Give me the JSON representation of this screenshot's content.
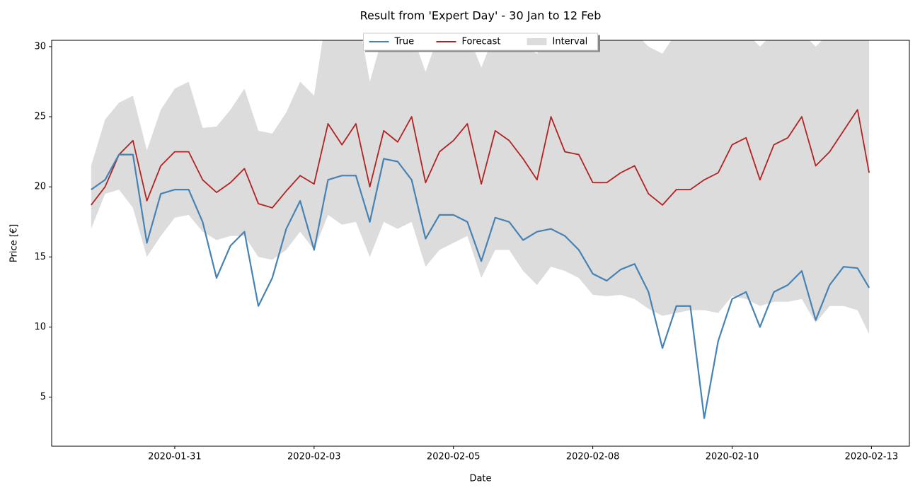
{
  "chart_data": {
    "type": "line",
    "title": "Result from 'Expert Day' - 30 Jan to 12 Feb",
    "x_label": "Date",
    "y_label": "Price [€]",
    "x": [
      "2020-01-30T00:00",
      "2020-01-30T06:00",
      "2020-01-30T12:00",
      "2020-01-30T18:00",
      "2020-01-31T00:00",
      "2020-01-31T06:00",
      "2020-01-31T12:00",
      "2020-01-31T18:00",
      "2020-02-01T00:00",
      "2020-02-01T06:00",
      "2020-02-01T12:00",
      "2020-02-01T18:00",
      "2020-02-02T00:00",
      "2020-02-02T06:00",
      "2020-02-02T12:00",
      "2020-02-02T18:00",
      "2020-02-03T00:00",
      "2020-02-03T06:00",
      "2020-02-03T12:00",
      "2020-02-03T18:00",
      "2020-02-04T00:00",
      "2020-02-04T06:00",
      "2020-02-04T12:00",
      "2020-02-04T18:00",
      "2020-02-05T00:00",
      "2020-02-05T06:00",
      "2020-02-05T12:00",
      "2020-02-05T18:00",
      "2020-02-06T00:00",
      "2020-02-06T06:00",
      "2020-02-06T12:00",
      "2020-02-06T18:00",
      "2020-02-07T00:00",
      "2020-02-07T06:00",
      "2020-02-07T12:00",
      "2020-02-07T18:00",
      "2020-02-08T00:00",
      "2020-02-08T06:00",
      "2020-02-08T12:00",
      "2020-02-08T18:00",
      "2020-02-09T00:00",
      "2020-02-09T06:00",
      "2020-02-09T12:00",
      "2020-02-09T18:00",
      "2020-02-10T00:00",
      "2020-02-10T06:00",
      "2020-02-10T12:00",
      "2020-02-10T18:00",
      "2020-02-11T00:00",
      "2020-02-11T06:00",
      "2020-02-11T12:00",
      "2020-02-11T18:00",
      "2020-02-12T00:00",
      "2020-02-12T06:00",
      "2020-02-12T12:00",
      "2020-02-12T18:00",
      "2020-02-12T23:00"
    ],
    "series": [
      {
        "name": "True",
        "color": "#4682b4",
        "values": [
          19.8,
          20.5,
          22.3,
          22.3,
          16.0,
          19.5,
          19.8,
          19.8,
          17.5,
          13.5,
          15.8,
          16.8,
          11.5,
          13.5,
          17.0,
          19.0,
          15.5,
          20.5,
          20.8,
          20.8,
          17.5,
          22.0,
          21.8,
          20.5,
          16.3,
          18.0,
          18.0,
          17.5,
          14.7,
          17.8,
          17.5,
          16.2,
          16.8,
          17.0,
          16.5,
          15.5,
          13.8,
          13.3,
          14.1,
          14.5,
          12.5,
          8.5,
          11.5,
          11.5,
          3.5,
          9.0,
          12.0,
          12.5,
          10.0,
          12.5,
          13.0,
          14.0,
          10.5,
          13.0,
          14.3,
          14.2,
          12.8
        ]
      },
      {
        "name": "Forecast",
        "color": "#b22222",
        "values": [
          18.7,
          20.0,
          22.3,
          23.3,
          19.0,
          21.5,
          22.5,
          22.5,
          20.5,
          19.6,
          20.3,
          21.3,
          18.8,
          18.5,
          19.7,
          20.8,
          20.2,
          24.5,
          23.0,
          24.5,
          20.0,
          24.0,
          23.2,
          25.0,
          20.3,
          22.5,
          23.3,
          24.5,
          20.2,
          24.0,
          23.3,
          22.0,
          20.5,
          25.0,
          22.5,
          22.3,
          20.3,
          20.3,
          21.0,
          21.5,
          19.5,
          18.7,
          19.8,
          19.8,
          20.5,
          21.0,
          23.0,
          23.5,
          20.5,
          23.0,
          23.5,
          25.0,
          21.5,
          22.5,
          24.0,
          25.5,
          21.0
        ]
      }
    ],
    "interval": {
      "name": "Interval",
      "color": "#dcdcdc",
      "lower": [
        17.0,
        19.5,
        19.8,
        18.5,
        15.0,
        16.5,
        17.8,
        18.0,
        16.8,
        16.2,
        16.5,
        16.5,
        15.0,
        14.8,
        15.5,
        16.8,
        15.5,
        18.0,
        17.3,
        17.5,
        15.0,
        17.5,
        17.0,
        17.5,
        14.3,
        15.5,
        16.0,
        16.5,
        13.5,
        15.5,
        15.5,
        14.0,
        13.0,
        14.3,
        14.0,
        13.5,
        12.3,
        12.2,
        12.3,
        12.0,
        11.3,
        10.8,
        11.0,
        11.2,
        11.2,
        11.0,
        12.2,
        12.0,
        11.5,
        11.8,
        11.8,
        12.0,
        10.3,
        11.5,
        11.5,
        11.2,
        9.5
      ],
      "upper": [
        21.5,
        24.8,
        26.0,
        26.5,
        22.6,
        25.5,
        27.0,
        27.5,
        24.2,
        24.3,
        25.5,
        27.0,
        24.0,
        23.8,
        25.3,
        27.5,
        26.5,
        33,
        33,
        33,
        27.5,
        31,
        30.5,
        31,
        28.2,
        31,
        33,
        31,
        28.5,
        31,
        31,
        30,
        29.5,
        31,
        31,
        31,
        30,
        31,
        31,
        31,
        30,
        29.5,
        31,
        31,
        31,
        31,
        31,
        31,
        30,
        31,
        31,
        31,
        30,
        31,
        31,
        31,
        31
      ]
    },
    "xlim": [
      "2020-01-29T07:00",
      "2020-02-13T16:20"
    ],
    "xticks": [
      {
        "value": "2020-01-31T12:00",
        "label": "2020-01-31"
      },
      {
        "value": "2020-02-03T00:00",
        "label": "2020-02-03"
      },
      {
        "value": "2020-02-05T12:00",
        "label": "2020-02-05"
      },
      {
        "value": "2020-02-08T00:00",
        "label": "2020-02-08"
      },
      {
        "value": "2020-02-10T12:00",
        "label": "2020-02-10"
      },
      {
        "value": "2020-02-13T00:00",
        "label": "2020-02-13"
      }
    ],
    "ylim": [
      1.5,
      30.45
    ],
    "yticks": [
      5,
      10,
      15,
      20,
      25,
      30
    ],
    "legend": "upper center"
  }
}
